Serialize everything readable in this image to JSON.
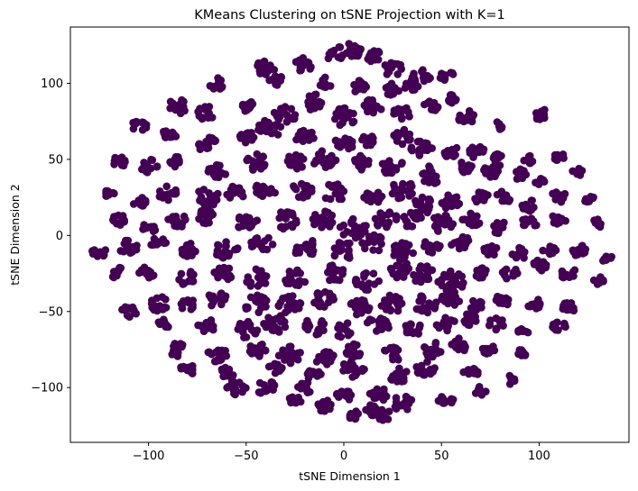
{
  "chart_data": {
    "type": "scatter",
    "title": "KMeans Clustering on tSNE Projection with K=1",
    "xlabel": "tSNE Dimension 1",
    "ylabel": "tSNE Dimension 2",
    "xlim": [
      -140,
      146
    ],
    "ylim": [
      -136,
      137
    ],
    "xticks": [
      -100,
      -50,
      0,
      50,
      100
    ],
    "yticks": [
      -100,
      -50,
      0,
      50,
      100
    ],
    "xtick_labels": [
      "−100",
      "−50",
      "0",
      "50",
      "100"
    ],
    "ytick_labels": [
      "−100",
      "−50",
      "0",
      "50",
      "100"
    ],
    "grid": false,
    "point_color": "#440154",
    "series": [
      {
        "cluster": 0,
        "clumps": [
          [
            -5,
            120,
            5
          ],
          [
            5,
            122,
            5
          ],
          [
            15,
            118,
            4
          ],
          [
            25,
            110,
            5
          ],
          [
            40,
            104,
            5
          ],
          [
            52,
            106,
            4
          ],
          [
            -20,
            112,
            5
          ],
          [
            -40,
            110,
            5
          ],
          [
            -65,
            100,
            4
          ],
          [
            -35,
            102,
            4
          ],
          [
            -10,
            100,
            4
          ],
          [
            8,
            98,
            4
          ],
          [
            25,
            96,
            4
          ],
          [
            35,
            98,
            4
          ],
          [
            -85,
            85,
            5
          ],
          [
            -70,
            80,
            5
          ],
          [
            -50,
            85,
            4
          ],
          [
            -30,
            80,
            6
          ],
          [
            -15,
            88,
            6
          ],
          [
            0,
            78,
            6
          ],
          [
            15,
            85,
            5
          ],
          [
            30,
            80,
            5
          ],
          [
            45,
            85,
            4
          ],
          [
            55,
            90,
            3
          ],
          [
            62,
            78,
            5
          ],
          [
            80,
            72,
            3
          ],
          [
            100,
            80,
            4
          ],
          [
            -105,
            72,
            4
          ],
          [
            -90,
            65,
            4
          ],
          [
            -70,
            60,
            5
          ],
          [
            -50,
            65,
            4
          ],
          [
            -38,
            70,
            6
          ],
          [
            -20,
            65,
            5
          ],
          [
            0,
            60,
            5
          ],
          [
            12,
            62,
            4
          ],
          [
            30,
            65,
            5
          ],
          [
            40,
            58,
            6
          ],
          [
            55,
            55,
            4
          ],
          [
            68,
            55,
            4
          ],
          [
            80,
            50,
            4
          ],
          [
            95,
            50,
            3
          ],
          [
            110,
            52,
            3
          ],
          [
            -115,
            48,
            4
          ],
          [
            -100,
            45,
            5
          ],
          [
            -85,
            48,
            4
          ],
          [
            -65,
            42,
            5
          ],
          [
            -45,
            48,
            6
          ],
          [
            -25,
            48,
            5
          ],
          [
            -10,
            50,
            6
          ],
          [
            10,
            48,
            5
          ],
          [
            25,
            45,
            6
          ],
          [
            45,
            40,
            6
          ],
          [
            62,
            45,
            4
          ],
          [
            75,
            42,
            4
          ],
          [
            90,
            40,
            4
          ],
          [
            100,
            35,
            3
          ],
          [
            120,
            42,
            3
          ],
          [
            -120,
            28,
            3
          ],
          [
            -105,
            22,
            4
          ],
          [
            -90,
            28,
            5
          ],
          [
            -70,
            25,
            6
          ],
          [
            -55,
            28,
            5
          ],
          [
            -40,
            30,
            6
          ],
          [
            -22,
            30,
            6
          ],
          [
            -5,
            28,
            6
          ],
          [
            15,
            25,
            5
          ],
          [
            30,
            30,
            6
          ],
          [
            40,
            20,
            6
          ],
          [
            55,
            22,
            5
          ],
          [
            70,
            25,
            4
          ],
          [
            82,
            25,
            4
          ],
          [
            95,
            20,
            4
          ],
          [
            110,
            25,
            4
          ],
          [
            125,
            25,
            3
          ],
          [
            -115,
            10,
            4
          ],
          [
            -100,
            5,
            4
          ],
          [
            -85,
            10,
            5
          ],
          [
            -70,
            12,
            5
          ],
          [
            -50,
            10,
            6
          ],
          [
            -30,
            10,
            6
          ],
          [
            -10,
            10,
            6
          ],
          [
            5,
            5,
            7
          ],
          [
            22,
            10,
            6
          ],
          [
            35,
            10,
            5
          ],
          [
            50,
            8,
            6
          ],
          [
            65,
            10,
            5
          ],
          [
            80,
            5,
            4
          ],
          [
            95,
            8,
            4
          ],
          [
            110,
            10,
            4
          ],
          [
            130,
            8,
            3
          ],
          [
            -125,
            -10,
            4
          ],
          [
            -110,
            -8,
            5
          ],
          [
            -95,
            -5,
            4
          ],
          [
            -80,
            -10,
            5
          ],
          [
            -60,
            -10,
            6
          ],
          [
            -42,
            -5,
            6
          ],
          [
            -20,
            -8,
            6
          ],
          [
            0,
            -10,
            6
          ],
          [
            15,
            -5,
            6
          ],
          [
            30,
            -10,
            6
          ],
          [
            45,
            -8,
            5
          ],
          [
            60,
            -5,
            5
          ],
          [
            75,
            -10,
            4
          ],
          [
            90,
            -12,
            4
          ],
          [
            105,
            -10,
            4
          ],
          [
            120,
            -10,
            4
          ],
          [
            135,
            -15,
            3
          ],
          [
            -115,
            -25,
            4
          ],
          [
            -100,
            -25,
            5
          ],
          [
            -80,
            -28,
            5
          ],
          [
            -62,
            -25,
            5
          ],
          [
            -45,
            -28,
            6
          ],
          [
            -25,
            -28,
            6
          ],
          [
            -5,
            -25,
            6
          ],
          [
            12,
            -30,
            6
          ],
          [
            28,
            -22,
            6
          ],
          [
            40,
            -25,
            6
          ],
          [
            55,
            -30,
            7
          ],
          [
            70,
            -25,
            4
          ],
          [
            85,
            -25,
            4
          ],
          [
            100,
            -20,
            4
          ],
          [
            115,
            -25,
            4
          ],
          [
            130,
            -30,
            3
          ],
          [
            -95,
            -45,
            5
          ],
          [
            -80,
            -45,
            4
          ],
          [
            -65,
            -42,
            5
          ],
          [
            -45,
            -45,
            6
          ],
          [
            -28,
            -45,
            6
          ],
          [
            -10,
            -42,
            6
          ],
          [
            8,
            -48,
            6
          ],
          [
            25,
            -45,
            6
          ],
          [
            42,
            -45,
            6
          ],
          [
            55,
            -42,
            5
          ],
          [
            68,
            -45,
            4
          ],
          [
            82,
            -42,
            4
          ],
          [
            98,
            -45,
            4
          ],
          [
            115,
            -48,
            4
          ],
          [
            -110,
            -50,
            4
          ],
          [
            -92,
            -58,
            3
          ],
          [
            -70,
            -60,
            5
          ],
          [
            -50,
            -62,
            6
          ],
          [
            -35,
            -58,
            6
          ],
          [
            -15,
            -60,
            6
          ],
          [
            0,
            -62,
            5
          ],
          [
            18,
            -58,
            6
          ],
          [
            35,
            -62,
            5
          ],
          [
            52,
            -58,
            5
          ],
          [
            65,
            -55,
            4
          ],
          [
            78,
            -58,
            4
          ],
          [
            92,
            -62,
            3
          ],
          [
            110,
            -60,
            4
          ],
          [
            -85,
            -75,
            5
          ],
          [
            -65,
            -78,
            5
          ],
          [
            -45,
            -75,
            5
          ],
          [
            -28,
            -78,
            6
          ],
          [
            -10,
            -80,
            5
          ],
          [
            5,
            -75,
            5
          ],
          [
            25,
            -78,
            5
          ],
          [
            45,
            -75,
            5
          ],
          [
            60,
            -72,
            5
          ],
          [
            75,
            -75,
            4
          ],
          [
            90,
            -78,
            3
          ],
          [
            -80,
            -88,
            4
          ],
          [
            -60,
            -90,
            4
          ],
          [
            -35,
            -88,
            4
          ],
          [
            -15,
            -92,
            4
          ],
          [
            5,
            -88,
            6
          ],
          [
            28,
            -92,
            5
          ],
          [
            42,
            -88,
            5
          ],
          [
            65,
            -90,
            4
          ],
          [
            85,
            -95,
            3
          ],
          [
            -55,
            -100,
            5
          ],
          [
            -40,
            -100,
            5
          ],
          [
            -20,
            -100,
            4
          ],
          [
            0,
            -105,
            4
          ],
          [
            18,
            -105,
            5
          ],
          [
            30,
            -110,
            5
          ],
          [
            52,
            -108,
            4
          ],
          [
            70,
            -102,
            3
          ],
          [
            -25,
            -110,
            4
          ],
          [
            -10,
            -112,
            4
          ],
          [
            15,
            -115,
            4
          ],
          [
            5,
            -118,
            3
          ],
          [
            20,
            -118,
            4
          ]
        ]
      }
    ]
  }
}
